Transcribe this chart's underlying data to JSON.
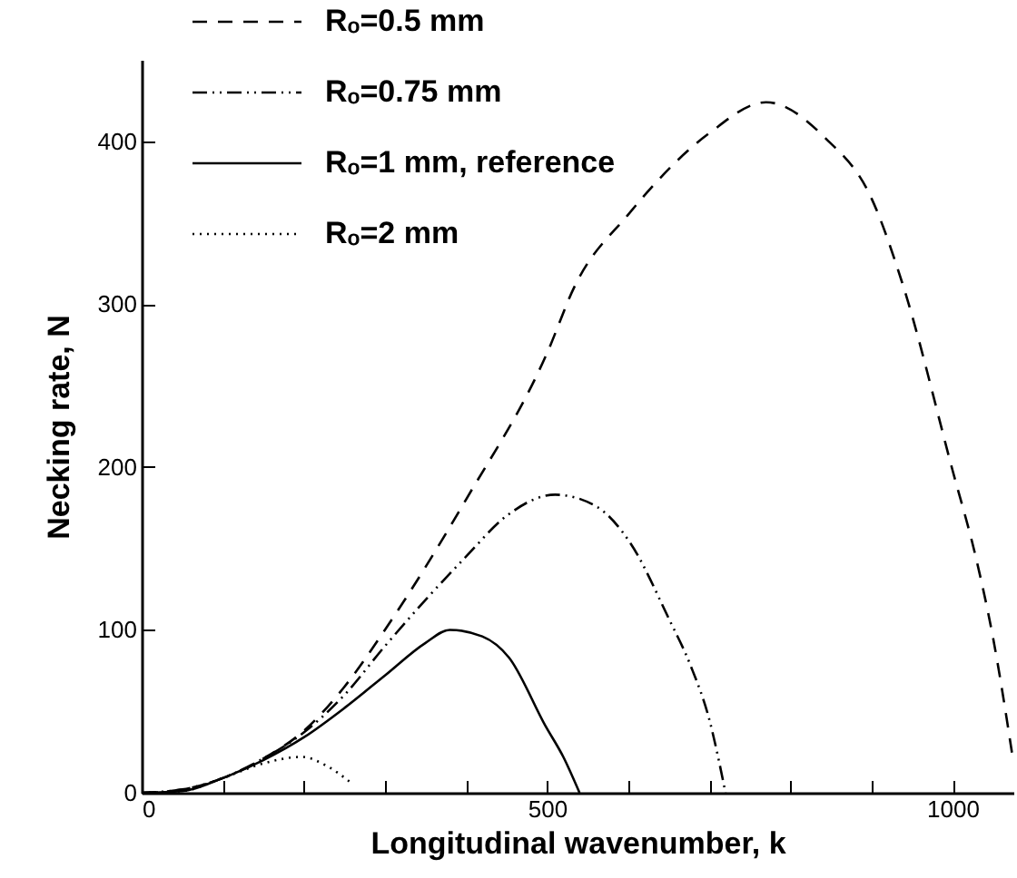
{
  "chart_data": {
    "type": "line",
    "xlabel": "Longitudinal wavenumber, k",
    "ylabel": "Necking rate, N",
    "xlim": [
      0,
      1075
    ],
    "ylim": [
      0,
      450
    ],
    "xticks": [
      0,
      {
        "value": 100,
        "label": null
      },
      {
        "value": 200,
        "label": null
      },
      {
        "value": 300,
        "label": null
      },
      {
        "value": 400,
        "label": null
      },
      500,
      {
        "value": 600,
        "label": null
      },
      {
        "value": 700,
        "label": null
      },
      {
        "value": 800,
        "label": null
      },
      {
        "value": 900,
        "label": null
      },
      1000
    ],
    "yticks": [
      0,
      100,
      200,
      300,
      400
    ],
    "grid": false,
    "legend": "top left",
    "marker": "none",
    "series": [
      {
        "name": "Rₒ=0.5 mm",
        "color": "#000000",
        "line_style": "dashed",
        "x": [
          0,
          50,
          100,
          150,
          200,
          250,
          300,
          400,
          500,
          534,
          600,
          700,
          770,
          843,
          900,
          938,
          1000,
          1029,
          1050,
          1075
        ],
        "values": [
          0,
          2,
          9,
          21,
          38,
          65,
          100,
          180,
          270,
          311,
          355,
          405,
          424,
          402,
          365,
          313,
          198,
          144,
          95,
          19
        ]
      },
      {
        "name": "Rₒ=0.75 mm",
        "color": "#000000",
        "line_style": "dashdot",
        "x": [
          0,
          50,
          100,
          150,
          200,
          250,
          300,
          400,
          450,
          510,
          560,
          603,
          650,
          677,
          700,
          720
        ],
        "values": [
          0,
          2,
          9,
          21,
          37,
          60,
          90,
          145,
          170,
          183,
          176,
          153,
          107,
          78,
          45,
          0
        ]
      },
      {
        "name": "Rₒ=1 mm, reference",
        "color": "#000000",
        "line_style": "solid",
        "x": [
          0,
          50,
          100,
          150,
          200,
          250,
          300,
          350,
          380,
          420,
          453,
          498,
          520,
          540
        ],
        "values": [
          0,
          1,
          9,
          20,
          34,
          52,
          72,
          92,
          100,
          96,
          83,
          41,
          22,
          0
        ]
      },
      {
        "name": "Rₒ=2 mm",
        "color": "#000000",
        "line_style": "dotted",
        "x": [
          0,
          50,
          100,
          150,
          197,
          230,
          256
        ],
        "values": [
          0,
          1,
          9,
          18,
          22,
          16,
          7
        ]
      }
    ]
  }
}
